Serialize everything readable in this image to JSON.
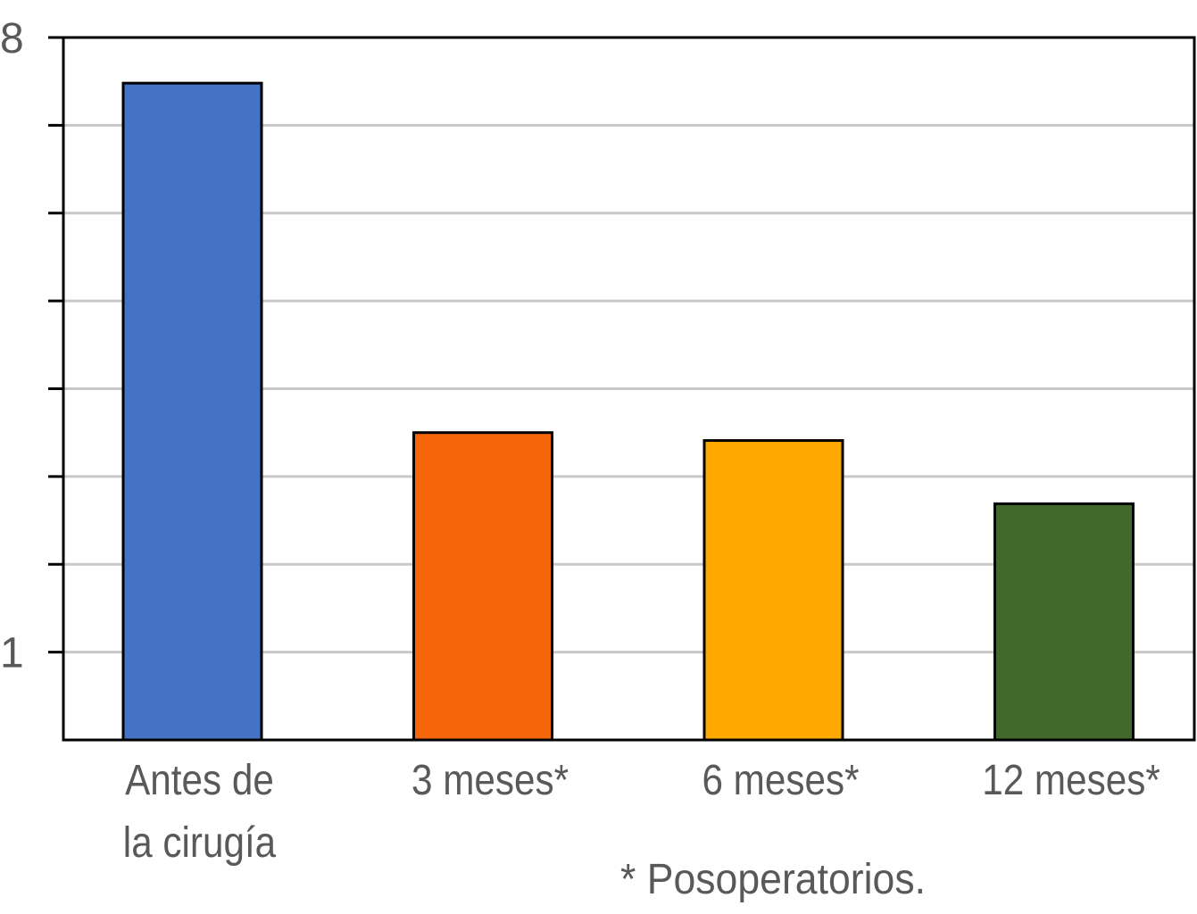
{
  "chart_data": {
    "type": "bar",
    "title": "",
    "xlabel": "",
    "ylabel": "",
    "ylim": [
      0,
      8
    ],
    "y_tick_labels": [
      "1",
      "8"
    ],
    "grid": true,
    "categories": [
      [
        "Antes de",
        "la cirugía"
      ],
      [
        "3 meses*"
      ],
      [
        "6 meses*"
      ],
      [
        "12 meses*"
      ]
    ],
    "values": [
      7.48,
      3.5,
      3.41,
      2.69
    ],
    "colors": [
      "#4472C4",
      "#F5660A",
      "#FFA900",
      "#43682B"
    ],
    "footnote": "* Posoperatorios."
  }
}
